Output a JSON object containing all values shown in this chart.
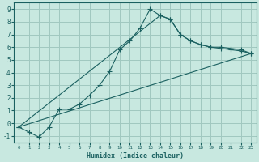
{
  "xlabel": "Humidex (Indice chaleur)",
  "xlim": [
    -0.5,
    23.5
  ],
  "ylim": [
    -1.5,
    9.5
  ],
  "xticks": [
    0,
    1,
    2,
    3,
    4,
    5,
    6,
    7,
    8,
    9,
    10,
    11,
    12,
    13,
    14,
    15,
    16,
    17,
    18,
    19,
    20,
    21,
    22,
    23
  ],
  "yticks": [
    -1,
    0,
    1,
    2,
    3,
    4,
    5,
    6,
    7,
    8,
    9
  ],
  "background_color": "#c8e8e0",
  "grid_color": "#a0c8c0",
  "line_color": "#1a6060",
  "line1_x": [
    0,
    1,
    2,
    3,
    4,
    5,
    6,
    7,
    8,
    9,
    10,
    11,
    12,
    13,
    14,
    15,
    16,
    17,
    18,
    19,
    20,
    21,
    22,
    23
  ],
  "line1_y": [
    -0.3,
    -0.7,
    -1.1,
    -0.3,
    1.1,
    1.1,
    1.5,
    2.2,
    3.0,
    4.1,
    5.8,
    6.5,
    7.5,
    9.0,
    8.5,
    8.2,
    7.0,
    6.5,
    6.2,
    6.0,
    6.0,
    5.9,
    5.8,
    5.5
  ],
  "line2_x": [
    0,
    23
  ],
  "line2_y": [
    -0.3,
    5.5
  ],
  "line3_x": [
    0,
    14,
    15,
    16,
    17,
    18,
    19,
    20,
    21,
    22,
    23
  ],
  "line3_y": [
    -0.3,
    8.5,
    8.2,
    7.0,
    6.5,
    6.2,
    6.0,
    5.9,
    5.8,
    5.7,
    5.5
  ]
}
